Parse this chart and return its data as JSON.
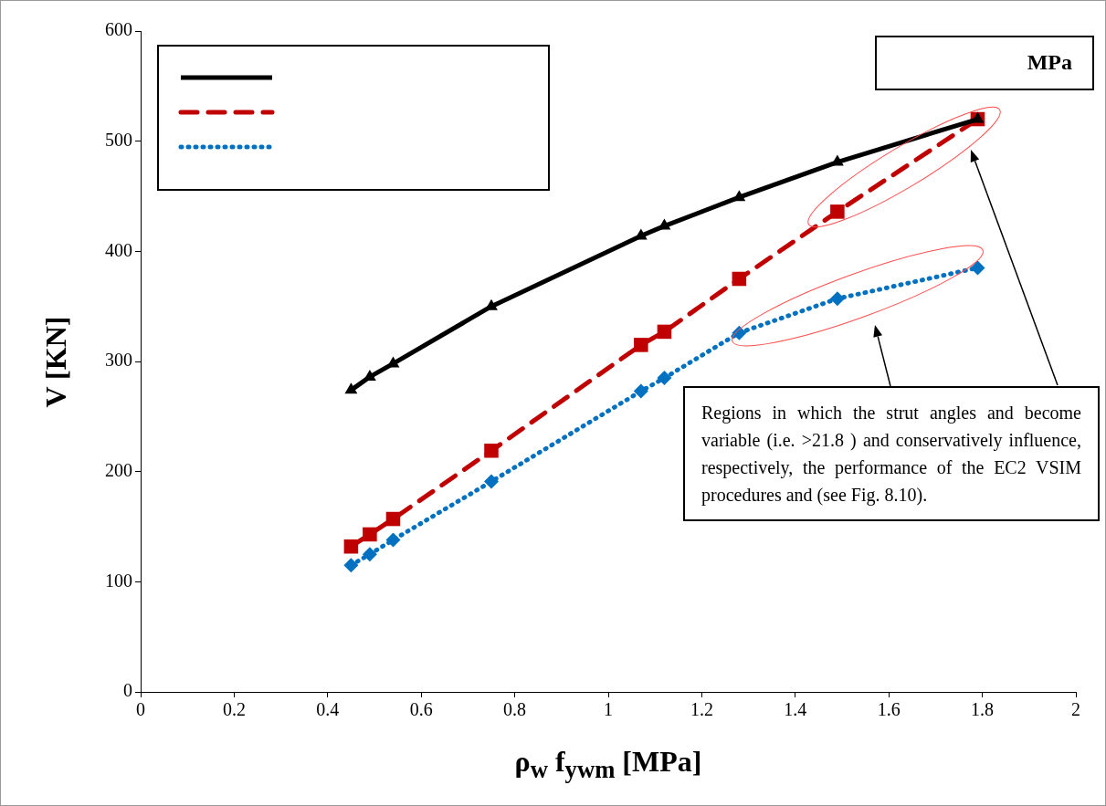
{
  "chart_data": {
    "type": "line",
    "xlabel": "ρ$_{w}$ f$_{ywm}$ [MPa]",
    "ylabel": "V [KN]",
    "x": [
      0.45,
      0.49,
      0.54,
      0.75,
      1.07,
      1.12,
      1.28,
      1.49,
      1.79
    ],
    "series": [
      {
        "color": "#000000",
        "marker": "triangle",
        "line_style": "solid",
        "values": [
          274,
          286,
          298,
          350,
          414,
          423,
          449,
          481,
          520
        ]
      },
      {
        "color": "#c00000",
        "marker": "square",
        "line_style": "dashed",
        "values": [
          132,
          143,
          157,
          219,
          315,
          327,
          375,
          436,
          520
        ]
      },
      {
        "color": "#0070c0",
        "marker": "diamond",
        "line_style": "dotted",
        "values": [
          115,
          125,
          138,
          191,
          273,
          285,
          326,
          357,
          385
        ]
      }
    ],
    "xlim": [
      0,
      2
    ],
    "xticks": [
      0,
      0.2,
      0.4,
      0.6,
      0.8,
      1,
      1.2,
      1.4,
      1.6,
      1.8,
      2
    ],
    "ylim": [
      0,
      600
    ],
    "yticks": [
      0,
      100,
      200,
      300,
      400,
      500,
      600
    ],
    "grid": false,
    "annotations": [
      "MPa",
      "Regions in which the strut angles and become variable (i.e. >21.8 ) and conservatively influence, respectively, the performance of the EC2 VSIM procedures and (see Fig. 8.10)."
    ]
  }
}
